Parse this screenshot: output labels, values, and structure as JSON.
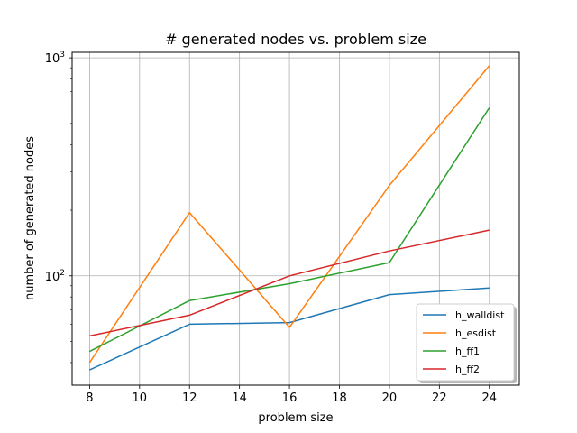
{
  "chart_data": {
    "type": "line",
    "title": "# generated nodes vs. problem size",
    "xlabel": "problem size",
    "ylabel": "number of generated nodes",
    "x": [
      8,
      12,
      16,
      20,
      24
    ],
    "xlim": [
      7.3,
      25.2
    ],
    "x_ticks": [
      8,
      10,
      12,
      14,
      16,
      18,
      20,
      22,
      24
    ],
    "y_scale": "log",
    "ylim": [
      31.5,
      1060
    ],
    "y_ticks": [
      100,
      1000
    ],
    "y_tick_labels": [
      {
        "base": "10",
        "exp": "2"
      },
      {
        "base": "10",
        "exp": "3"
      }
    ],
    "grid": true,
    "legend_position": "lower-right",
    "series": [
      {
        "name": "h_walldist",
        "color": "#1f77b4",
        "values": [
          37,
          60,
          61,
          82,
          88
        ]
      },
      {
        "name": "h_esdist",
        "color": "#ff7f0e",
        "values": [
          40,
          195,
          58,
          260,
          920
        ]
      },
      {
        "name": "h_ff1",
        "color": "#2ca02c",
        "values": [
          45,
          77,
          92,
          115,
          590
        ]
      },
      {
        "name": "h_ff2",
        "color": "#d62728",
        "values": [
          53,
          66,
          100,
          130,
          162
        ]
      }
    ]
  }
}
